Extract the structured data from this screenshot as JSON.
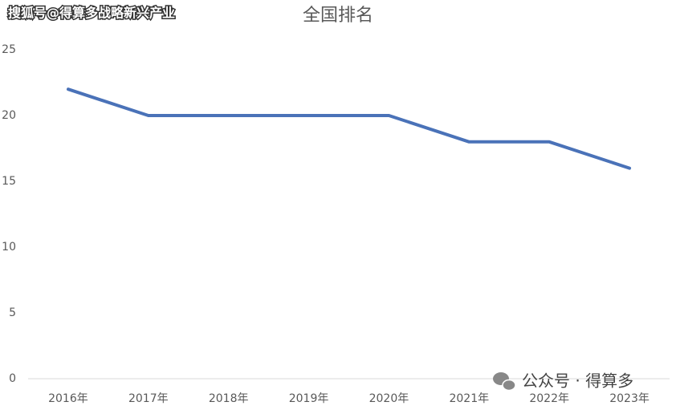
{
  "chart_data": {
    "type": "line",
    "title": "全国排名",
    "annotations": [
      "搜狐号@得算多战略新兴产业",
      "公众号 · 得算多"
    ],
    "categories": [
      "2016年",
      "2017年",
      "2018年",
      "2019年",
      "2020年",
      "2021年",
      "2022年",
      "2023年"
    ],
    "values": [
      22,
      20,
      20,
      20,
      20,
      18,
      18,
      16
    ],
    "color": "#4a72b8",
    "ylim": [
      0,
      25
    ],
    "yticks": [
      0,
      5,
      10,
      15,
      20,
      25
    ],
    "grid": false
  }
}
